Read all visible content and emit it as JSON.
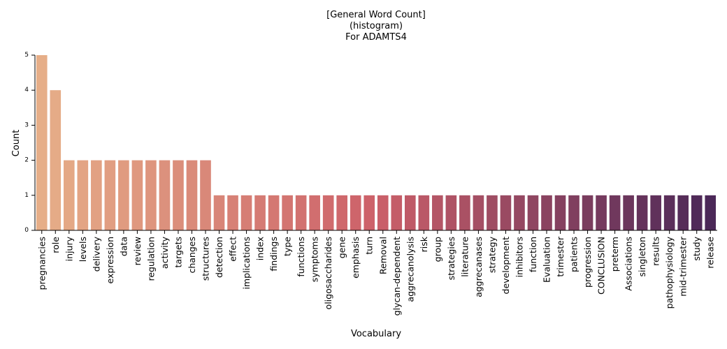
{
  "chart_data": {
    "type": "bar",
    "title_lines": [
      "[General Word Count]",
      "(histogram)",
      "For ADAMTS4"
    ],
    "xlabel": "Vocabulary",
    "ylabel": "Count",
    "ylim": [
      0,
      5
    ],
    "yticks": [
      0,
      1,
      2,
      3,
      4,
      5
    ],
    "grid": false,
    "palette": {
      "start": "#e6ae88",
      "mid": "#cc6069",
      "end": "#4b2858"
    },
    "categories": [
      "pregnancies",
      "role",
      "injury",
      "levels",
      "delivery",
      "expression",
      "data",
      "review",
      "regulation",
      "activity",
      "targets",
      "changes",
      "structures",
      "detection",
      "effect",
      "implications",
      "index",
      "findings",
      "type",
      "functions",
      "symptoms",
      "oligosaccharides",
      "gene",
      "emphasis",
      "turn",
      "Removal",
      "glycan-dependent",
      "aggrecanolysis",
      "risk",
      "group",
      "strategies",
      "literature",
      "aggrecanases",
      "strategy",
      "development",
      "inhibitors",
      "function",
      "Evaluation",
      "trimester",
      "patients",
      "progression",
      "CONCLUSION",
      "preterm",
      "Associations",
      "singleton",
      "results",
      "pathophysiology",
      "mid-trimester",
      "study",
      "release"
    ],
    "values": [
      5,
      4,
      2,
      2,
      2,
      2,
      2,
      2,
      2,
      2,
      2,
      2,
      2,
      1,
      1,
      1,
      1,
      1,
      1,
      1,
      1,
      1,
      1,
      1,
      1,
      1,
      1,
      1,
      1,
      1,
      1,
      1,
      1,
      1,
      1,
      1,
      1,
      1,
      1,
      1,
      1,
      1,
      1,
      1,
      1,
      1,
      1,
      1,
      1,
      1
    ]
  }
}
